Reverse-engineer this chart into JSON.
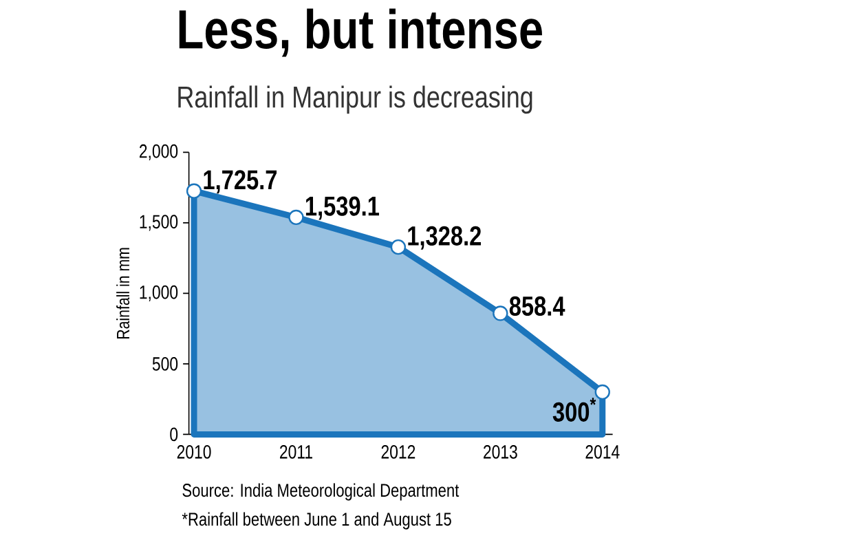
{
  "chart_data": {
    "type": "area",
    "title": "Less, but intense",
    "subtitle": "Rainfall in Manipur is decreasing",
    "ylabel": "Rainfall in mm",
    "categories": [
      "2010",
      "2011",
      "2012",
      "2013",
      "2014"
    ],
    "values": [
      1725.7,
      1539.1,
      1328.2,
      858.4,
      300
    ],
    "value_labels": [
      "1,725.7",
      "1,539.1",
      "1,328.2",
      "858.4",
      "300$^{*}$"
    ],
    "color": "#1b75bc",
    "marker": "circle",
    "ylim": [
      0,
      2000
    ],
    "yticks": [
      0,
      500,
      {
        "value": 1000,
        "label": "1,000"
      },
      {
        "value": 1500,
        "label": "1,500"
      },
      {
        "value": 2000,
        "label": "2,000"
      }
    ],
    "annotations": [
      "Source: India Meteorological Department",
      "*Rainfall between June 1 and August 15"
    ]
  }
}
